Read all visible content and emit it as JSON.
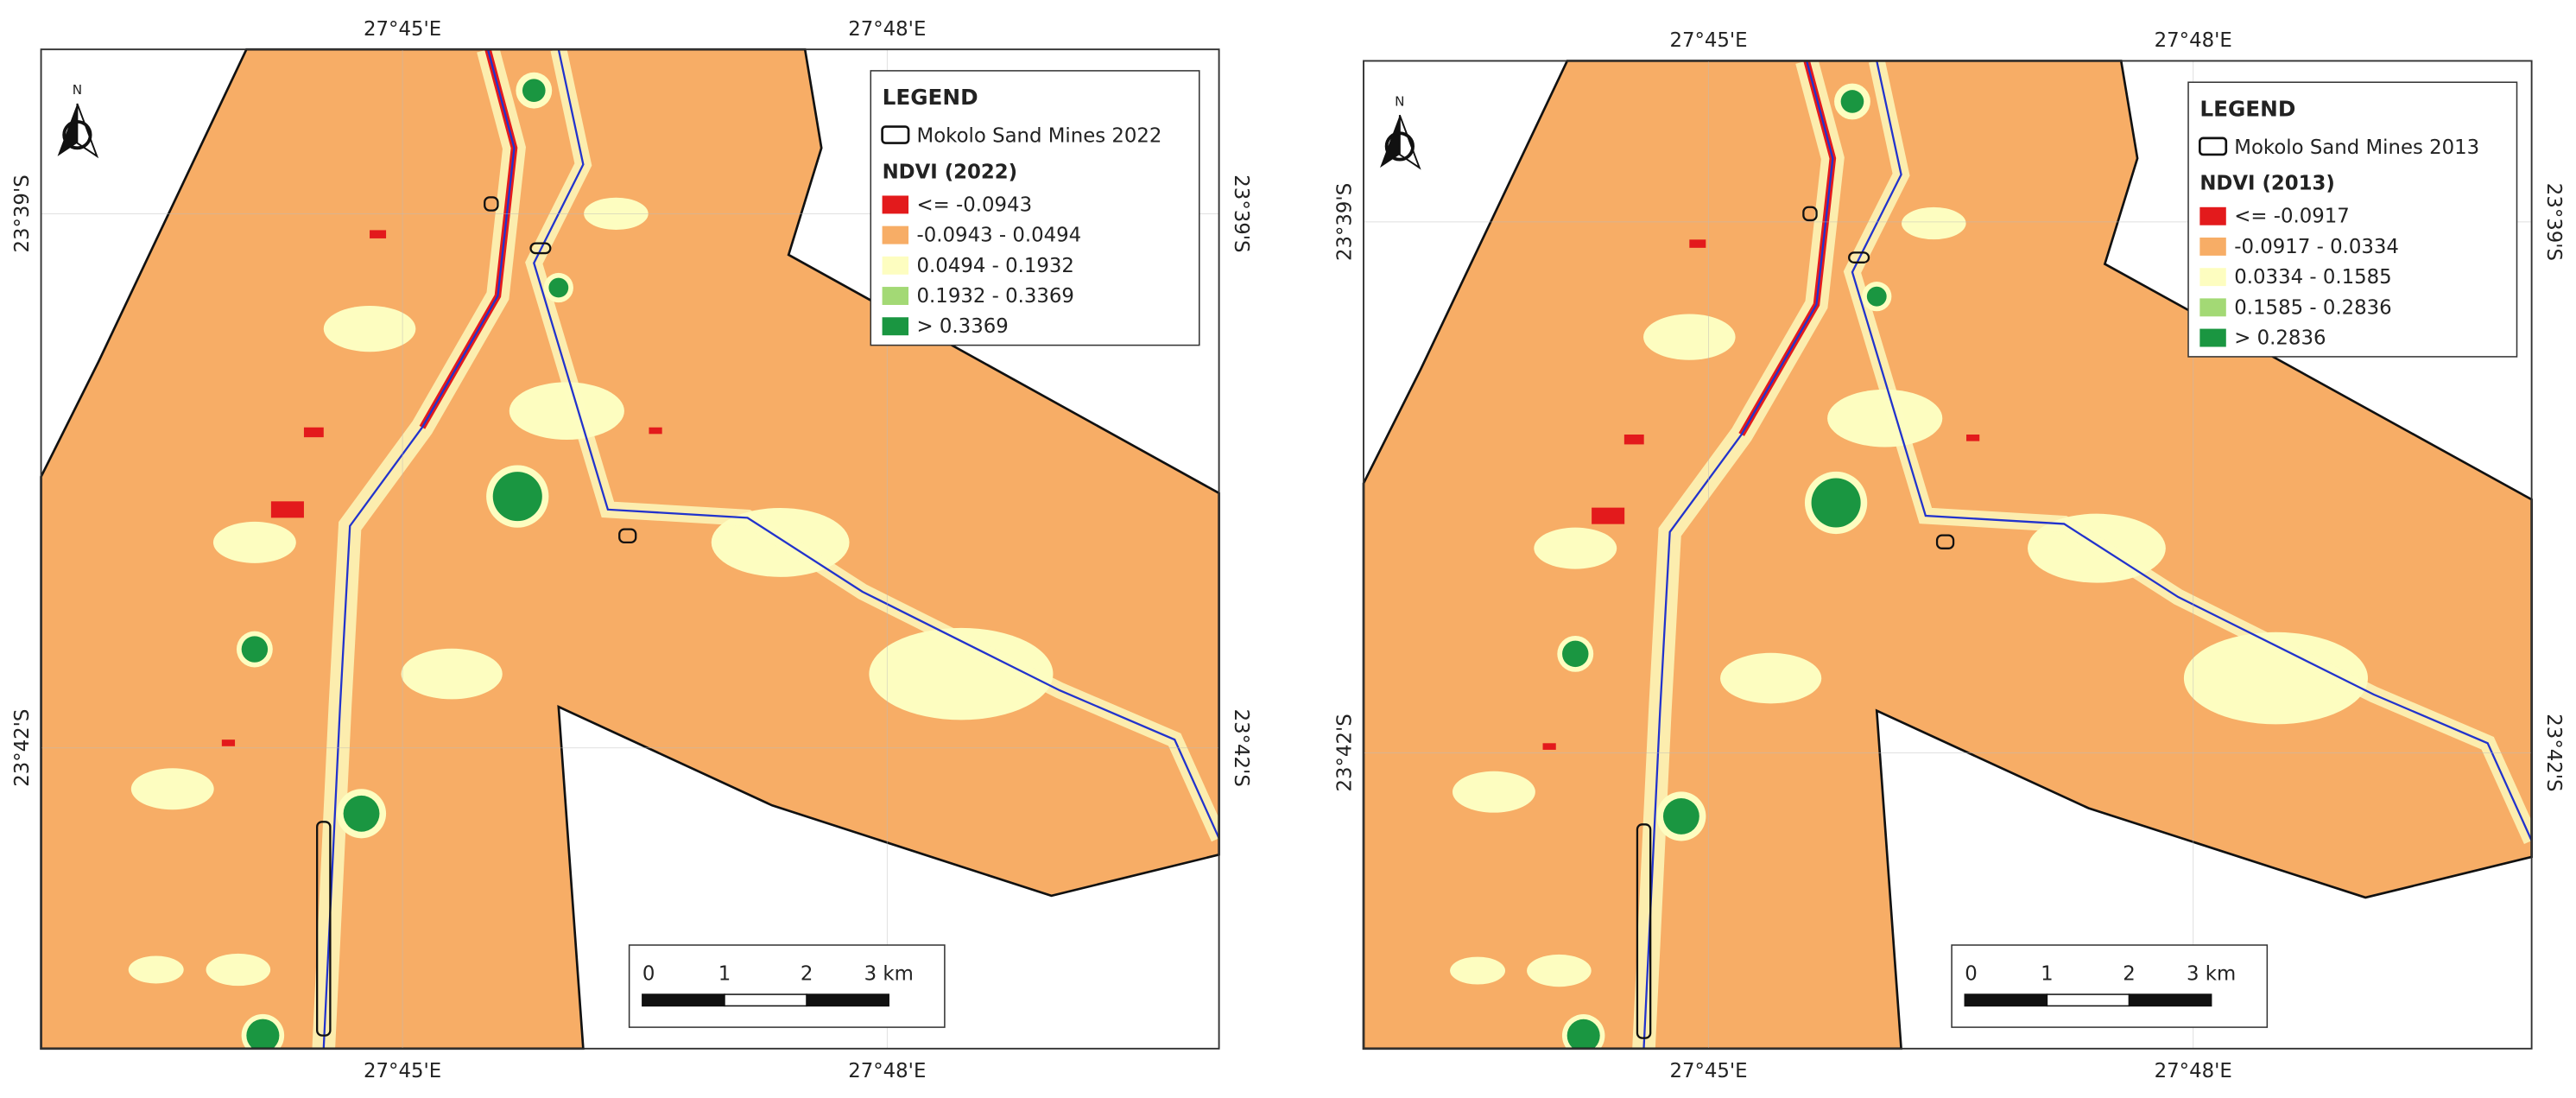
{
  "maps": [
    {
      "coords": {
        "top": [
          "27°45'E",
          "27°48'E"
        ],
        "bottom": [
          "27°45'E",
          "27°48'E"
        ],
        "left": [
          "23°39'S",
          "23°42'S"
        ],
        "right": [
          "23°39'S",
          "23°42'S"
        ]
      },
      "north": "N",
      "legend": {
        "title": "LEGEND",
        "boundary": "Mokolo Sand Mines 2022",
        "ndvi_title": "NDVI (2022)",
        "classes": [
          {
            "label": "<= -0.0943",
            "color": "#e31a1c"
          },
          {
            "label": "-0.0943 - 0.0494",
            "color": "#f7ad66"
          },
          {
            "label": "0.0494 - 0.1932",
            "color": "#fdfdc0"
          },
          {
            "label": "0.1932 - 0.3369",
            "color": "#a3d975"
          },
          {
            "label": "> 0.3369",
            "color": "#1a9641"
          }
        ]
      },
      "scale_bar": {
        "labels": [
          "0",
          "1",
          "2",
          "3 km"
        ]
      }
    },
    {
      "coords": {
        "top": [
          "27°45'E",
          "27°48'E"
        ],
        "bottom": [
          "27°45'E",
          "27°48'E"
        ],
        "left": [
          "23°39'S",
          "23°42'S"
        ],
        "right": [
          "23°39'S",
          "23°42'S"
        ]
      },
      "north": "N",
      "legend": {
        "title": "LEGEND",
        "boundary": "Mokolo Sand Mines 2013",
        "ndvi_title": "NDVI (2013)",
        "classes": [
          {
            "label": "<= -0.0917",
            "color": "#e31a1c"
          },
          {
            "label": "-0.0917 - 0.0334",
            "color": "#f7ad66"
          },
          {
            "label": "0.0334 - 0.1585",
            "color": "#fdfdc0"
          },
          {
            "label": "0.1585 - 0.2836",
            "color": "#a3d975"
          },
          {
            "label": "> 0.2836",
            "color": "#1a9641"
          }
        ]
      },
      "scale_bar": {
        "labels": [
          "0",
          "1",
          "2",
          "3 km"
        ]
      }
    }
  ]
}
